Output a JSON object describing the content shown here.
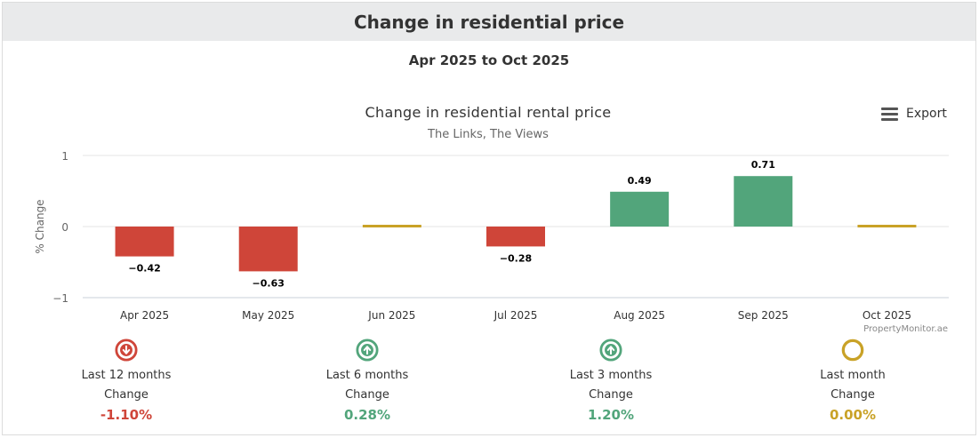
{
  "header": {
    "title": "Change in residential price"
  },
  "period": "Apr 2025 to Oct 2025",
  "export": {
    "label": "Export",
    "icon": "menu-icon"
  },
  "chart_data": {
    "type": "bar",
    "title": "Change in residential rental price",
    "subtitle": "The Links, The Views",
    "ylabel": "% Change",
    "xlabel": "",
    "ylim": [
      -1,
      1
    ],
    "yticks": [
      1,
      0,
      -1
    ],
    "yticklabels": [
      "1",
      "0",
      "−1"
    ],
    "grid": true,
    "categories": [
      "Apr 2025",
      "May 2025",
      "Jun 2025",
      "Jul 2025",
      "Aug 2025",
      "Sep 2025",
      "Oct 2025"
    ],
    "values": [
      -0.42,
      -0.63,
      0,
      -0.28,
      0.49,
      0.71,
      0
    ],
    "data_labels": [
      "−0.42",
      "−0.63",
      "",
      "−0.28",
      "0.49",
      "0.71",
      ""
    ],
    "credit": "PropertyMonitor.ae",
    "colors": {
      "negative": "#cf4539",
      "positive": "#52a57b",
      "zero": "#c9a227"
    }
  },
  "summary": [
    {
      "period": "Last 12 months",
      "sub": "Change",
      "value": "-1.10%",
      "trend": "down",
      "color": "#cf4539",
      "icon": "arrow-down-circle-icon"
    },
    {
      "period": "Last 6 months",
      "sub": "Change",
      "value": "0.28%",
      "trend": "up",
      "color": "#52a57b",
      "icon": "arrow-up-circle-icon"
    },
    {
      "period": "Last 3 months",
      "sub": "Change",
      "value": "1.20%",
      "trend": "up",
      "color": "#52a57b",
      "icon": "arrow-up-circle-icon"
    },
    {
      "period": "Last month",
      "sub": "Change",
      "value": "0.00%",
      "trend": "flat",
      "color": "#c9a227",
      "icon": "circle-icon"
    }
  ]
}
